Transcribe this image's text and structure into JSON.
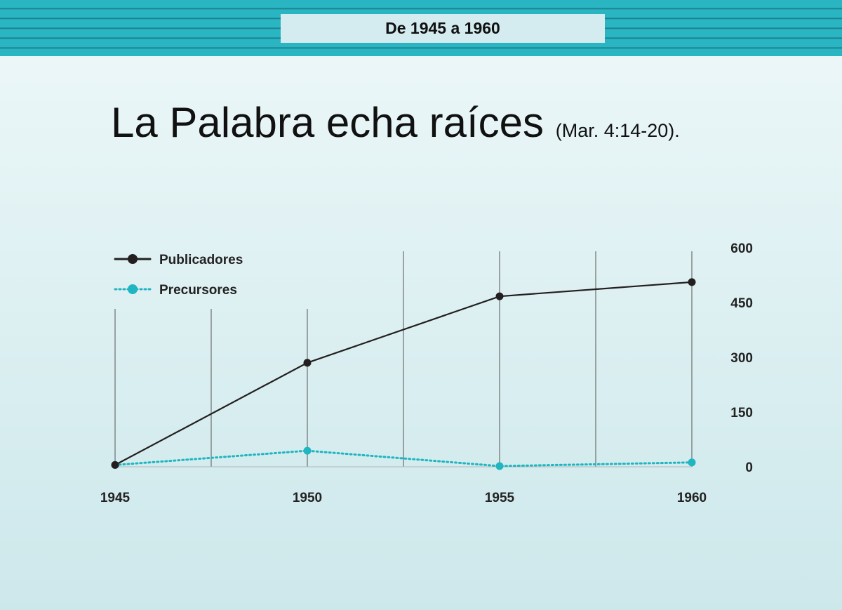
{
  "header": {
    "label": "De 1945 a 1960"
  },
  "title": {
    "main": "La Palabra echa raíces",
    "reference": "(Mar.  4:14-20)."
  },
  "chart_data": {
    "type": "line",
    "title": "La Palabra echa raíces",
    "x": [
      1945,
      1950,
      1955,
      1960
    ],
    "xtick_labels": [
      "1945",
      "1950",
      "1955",
      "1960"
    ],
    "ytick_labels": [
      "0",
      "150",
      "300",
      "450",
      "600"
    ],
    "yticks": [
      0,
      150,
      300,
      450,
      600
    ],
    "ylim": [
      0,
      600
    ],
    "xlim": [
      1945,
      1960
    ],
    "y_axis_side": "right",
    "grid": "vertical",
    "legend_placement": "top-left",
    "series": [
      {
        "name": "Publicadores",
        "values": [
          5,
          285,
          467,
          506
        ],
        "color": "#231f20",
        "style": "solid"
      },
      {
        "name": "Precursores",
        "values": [
          5,
          44,
          2,
          12
        ],
        "color": "#1fb5c1",
        "style": "dotted"
      }
    ]
  }
}
